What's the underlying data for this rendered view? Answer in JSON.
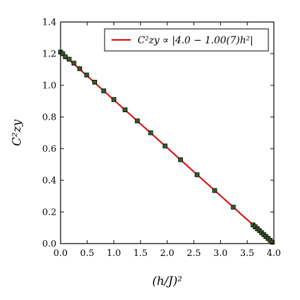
{
  "chart_data": {
    "type": "scatter",
    "title": "",
    "xlabel": "(h/J)²",
    "ylabel": "C²zy",
    "xlim": [
      0.0,
      4.0
    ],
    "ylim": [
      0.0,
      1.4
    ],
    "xticks": [
      "0.0",
      "0.5",
      "1.0",
      "1.5",
      "2.0",
      "2.5",
      "3.0",
      "3.5",
      "4.0"
    ],
    "yticks": [
      "0.0",
      "0.2",
      "0.4",
      "0.6",
      "0.8",
      "1.0",
      "1.2",
      "1.4"
    ],
    "grid": false,
    "legend_position": "top-right",
    "series": [
      {
        "name": "C²zy ∝ |4.0 − 1.00(7)h²|",
        "kind": "line",
        "color": "#e00000",
        "x": [
          0.0,
          4.0
        ],
        "y": [
          1.21,
          0.0
        ]
      },
      {
        "kind": "scatter",
        "marker": "square",
        "color": "#3a5a2a",
        "edge_color": "#000000",
        "x": [
          0.0,
          0.04,
          0.09,
          0.16,
          0.25,
          0.36,
          0.49,
          0.64,
          0.81,
          1.0,
          1.21,
          1.44,
          1.69,
          1.96,
          2.25,
          2.56,
          2.89,
          3.24,
          3.61,
          3.65,
          3.69,
          3.73,
          3.77,
          3.81,
          3.85,
          3.89,
          3.93,
          3.97
        ],
        "y": [
          1.21,
          1.2,
          1.18,
          1.165,
          1.14,
          1.105,
          1.065,
          1.02,
          0.965,
          0.91,
          0.845,
          0.775,
          0.7,
          0.617,
          0.53,
          0.435,
          0.335,
          0.23,
          0.118,
          0.106,
          0.094,
          0.082,
          0.069,
          0.057,
          0.045,
          0.033,
          0.021,
          0.009
        ]
      }
    ]
  }
}
